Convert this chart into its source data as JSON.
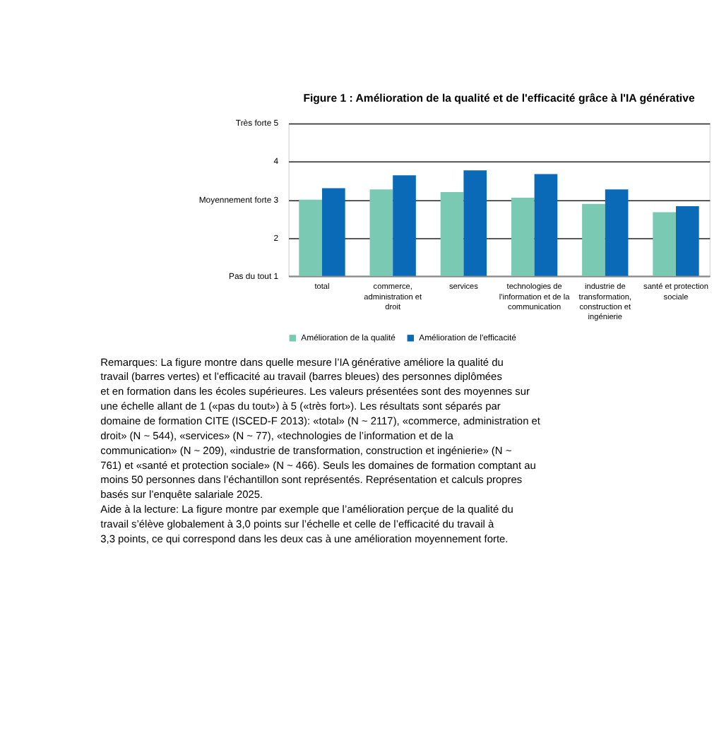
{
  "chart_data": {
    "type": "bar",
    "title": "Figure 1 : Amélioration de la qualité et de l'efficacité grâce à l'IA générative",
    "categories": [
      "total",
      "commerce, administration et droit",
      "services",
      "technologies de l'information et de la communication",
      "industrie de transformation, construction et ingénierie",
      "santé et protection sociale"
    ],
    "series": [
      {
        "name": "Amélioration de la qualité",
        "color": "#79c9b3",
        "values": [
          3.0,
          3.27,
          3.2,
          3.05,
          2.89,
          2.67
        ]
      },
      {
        "name": "Amélioration de l'efficacité",
        "color": "#0a6ab8",
        "values": [
          3.3,
          3.64,
          3.77,
          3.67,
          3.27,
          2.83
        ]
      }
    ],
    "ylim": [
      1,
      5
    ],
    "yticks": [
      {
        "value": 1,
        "label": "Pas du tout   1"
      },
      2,
      {
        "value": 3,
        "label": "Moyennement forte   3"
      },
      4,
      {
        "value": 5,
        "label": "Très forte   5"
      }
    ],
    "grid": "y",
    "legend": "bottom",
    "annotations": [
      "Remarques: La figure montre dans quelle mesure l’IA générative améliore la qualité du travail (barres vertes) et l’efficacité au travail (barres bleues) des personnes diplômées et en formation dans les écoles supérieures. Les valeurs présentées sont des moyennes sur une échelle allant de 1 («pas du tout») à 5 («très fort»). Les résultats sont séparés par domaine de formation CITE (ISCED-F 2013): «total» (N ~ 2117), «commerce, administration et droit» (N ~ 544), «services» (N ~ 77), «technologies de l’information et de la communication» (N ~ 209), «industrie de transformation, construction et ingénierie» (N ~ 761) et «santé et protection sociale» (N ~ 466). Seuls les domaines de formation comptant au moins 50 personnes dans l’échantillon sont représentés. Représentation et calculs propres basés sur l’enquête salariale 2025.",
      "Aide à la lecture: La figure montre par exemple que l’amélioration perçue de la qualité du travail s’élève globalement à 3,0 points sur l’échelle et celle de l’efficacité du travail à 3,3 points, ce qui correspond dans les deux cas à une amélioration moyennement forte."
    ]
  }
}
